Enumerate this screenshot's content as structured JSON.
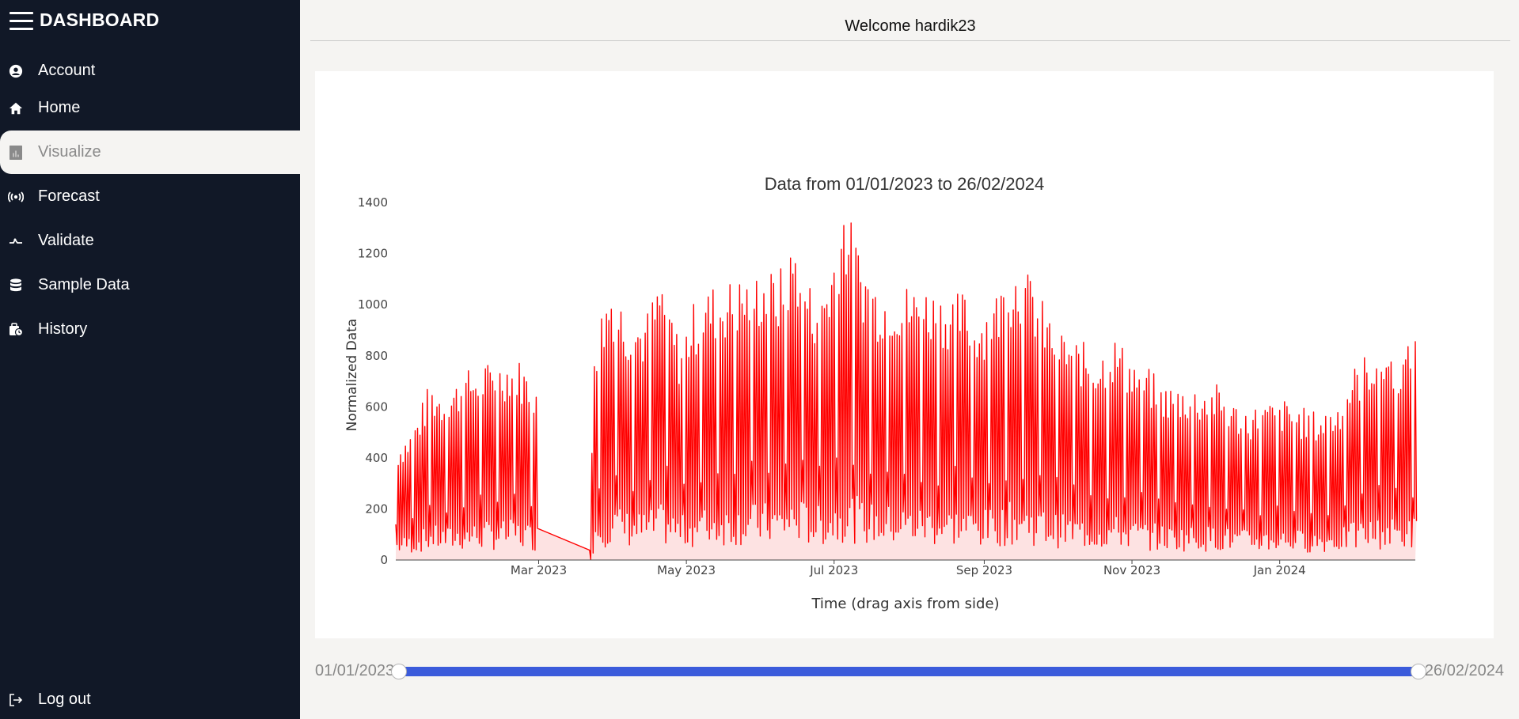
{
  "sidebar": {
    "brand": "DASHBOARD",
    "items": [
      {
        "label": "Account",
        "icon": "user-circle-icon"
      },
      {
        "label": "Home",
        "icon": "home-icon"
      },
      {
        "label": "Visualize",
        "icon": "bar-chart-icon",
        "active": true
      },
      {
        "label": "Forecast",
        "icon": "broadcast-icon"
      },
      {
        "label": "Validate",
        "icon": "validate-icon"
      },
      {
        "label": "Sample Data",
        "icon": "database-icon"
      },
      {
        "label": "History",
        "icon": "history-icon"
      }
    ],
    "logout_label": "Log out"
  },
  "header": {
    "welcome": "Welcome hardik23"
  },
  "range": {
    "start": "01/01/2023",
    "end": "26/02/2024"
  },
  "colors": {
    "sidebar_bg": "#111827",
    "accent": "#3b5bdb",
    "series": "#ff0000"
  },
  "chart_data": {
    "type": "area",
    "title": "Data from 01/01/2023 to 26/02/2024",
    "xlabel": "Time (drag axis from side)",
    "ylabel": "Normalized Data",
    "x_range": [
      "2023-01-01",
      "2024-02-26"
    ],
    "ylim": [
      0,
      1450
    ],
    "y_ticks": [
      0,
      200,
      400,
      600,
      800,
      1000,
      1200,
      1400
    ],
    "x_ticks": [
      {
        "date": "2023-03-01",
        "label": "Mar 2023"
      },
      {
        "date": "2023-05-01",
        "label": "May 2023"
      },
      {
        "date": "2023-07-01",
        "label": "Jul 2023"
      },
      {
        "date": "2023-09-01",
        "label": "Sep 2023"
      },
      {
        "date": "2023-11-01",
        "label": "Nov 2023"
      },
      {
        "date": "2024-01-01",
        "label": "Jan 2024"
      }
    ],
    "series": [
      {
        "envelope": [
          [
            "2023-01-01",
            450
          ],
          [
            "2023-01-08",
            520
          ],
          [
            "2023-01-15",
            700
          ],
          [
            "2023-01-22",
            660
          ],
          [
            "2023-01-29",
            740
          ],
          [
            "2023-02-05",
            770
          ],
          [
            "2023-02-12",
            780
          ],
          [
            "2023-02-19",
            810
          ],
          [
            "2023-02-28",
            710
          ],
          [
            "2023-03-22",
            40
          ],
          [
            "2023-03-24",
            900
          ],
          [
            "2023-03-31",
            1110
          ],
          [
            "2023-04-07",
            980
          ],
          [
            "2023-04-14",
            960
          ],
          [
            "2023-04-21",
            1130
          ],
          [
            "2023-04-28",
            870
          ],
          [
            "2023-05-04",
            1010
          ],
          [
            "2023-05-11",
            1080
          ],
          [
            "2023-05-18",
            1100
          ],
          [
            "2023-05-25",
            1120
          ],
          [
            "2023-06-01",
            1150
          ],
          [
            "2023-06-08",
            1130
          ],
          [
            "2023-06-15",
            1270
          ],
          [
            "2023-06-22",
            1060
          ],
          [
            "2023-06-29",
            1140
          ],
          [
            "2023-07-05",
            1430
          ],
          [
            "2023-07-12",
            1200
          ],
          [
            "2023-07-19",
            1090
          ],
          [
            "2023-07-26",
            1100
          ],
          [
            "2023-08-02",
            1080
          ],
          [
            "2023-08-09",
            1080
          ],
          [
            "2023-08-16",
            1050
          ],
          [
            "2023-08-23",
            1060
          ],
          [
            "2023-08-30",
            980
          ],
          [
            "2023-09-06",
            1060
          ],
          [
            "2023-09-13",
            1180
          ],
          [
            "2023-09-20",
            1120
          ],
          [
            "2023-09-27",
            980
          ],
          [
            "2023-10-04",
            900
          ],
          [
            "2023-10-11",
            860
          ],
          [
            "2023-10-18",
            820
          ],
          [
            "2023-10-25",
            880
          ],
          [
            "2023-11-01",
            800
          ],
          [
            "2023-11-08",
            750
          ],
          [
            "2023-11-15",
            690
          ],
          [
            "2023-11-22",
            690
          ],
          [
            "2023-11-29",
            680
          ],
          [
            "2023-12-06",
            690
          ],
          [
            "2023-12-13",
            620
          ],
          [
            "2023-12-20",
            600
          ],
          [
            "2023-12-27",
            620
          ],
          [
            "2024-01-03",
            630
          ],
          [
            "2024-01-10",
            600
          ],
          [
            "2024-01-17",
            580
          ],
          [
            "2024-01-24",
            610
          ],
          [
            "2024-01-31",
            750
          ],
          [
            "2024-02-07",
            830
          ],
          [
            "2024-02-14",
            850
          ],
          [
            "2024-02-21",
            820
          ],
          [
            "2024-02-26",
            880
          ]
        ],
        "gap": [
          "2023-02-28",
          "2023-03-22"
        ]
      }
    ],
    "grid": false,
    "legend": "none"
  }
}
